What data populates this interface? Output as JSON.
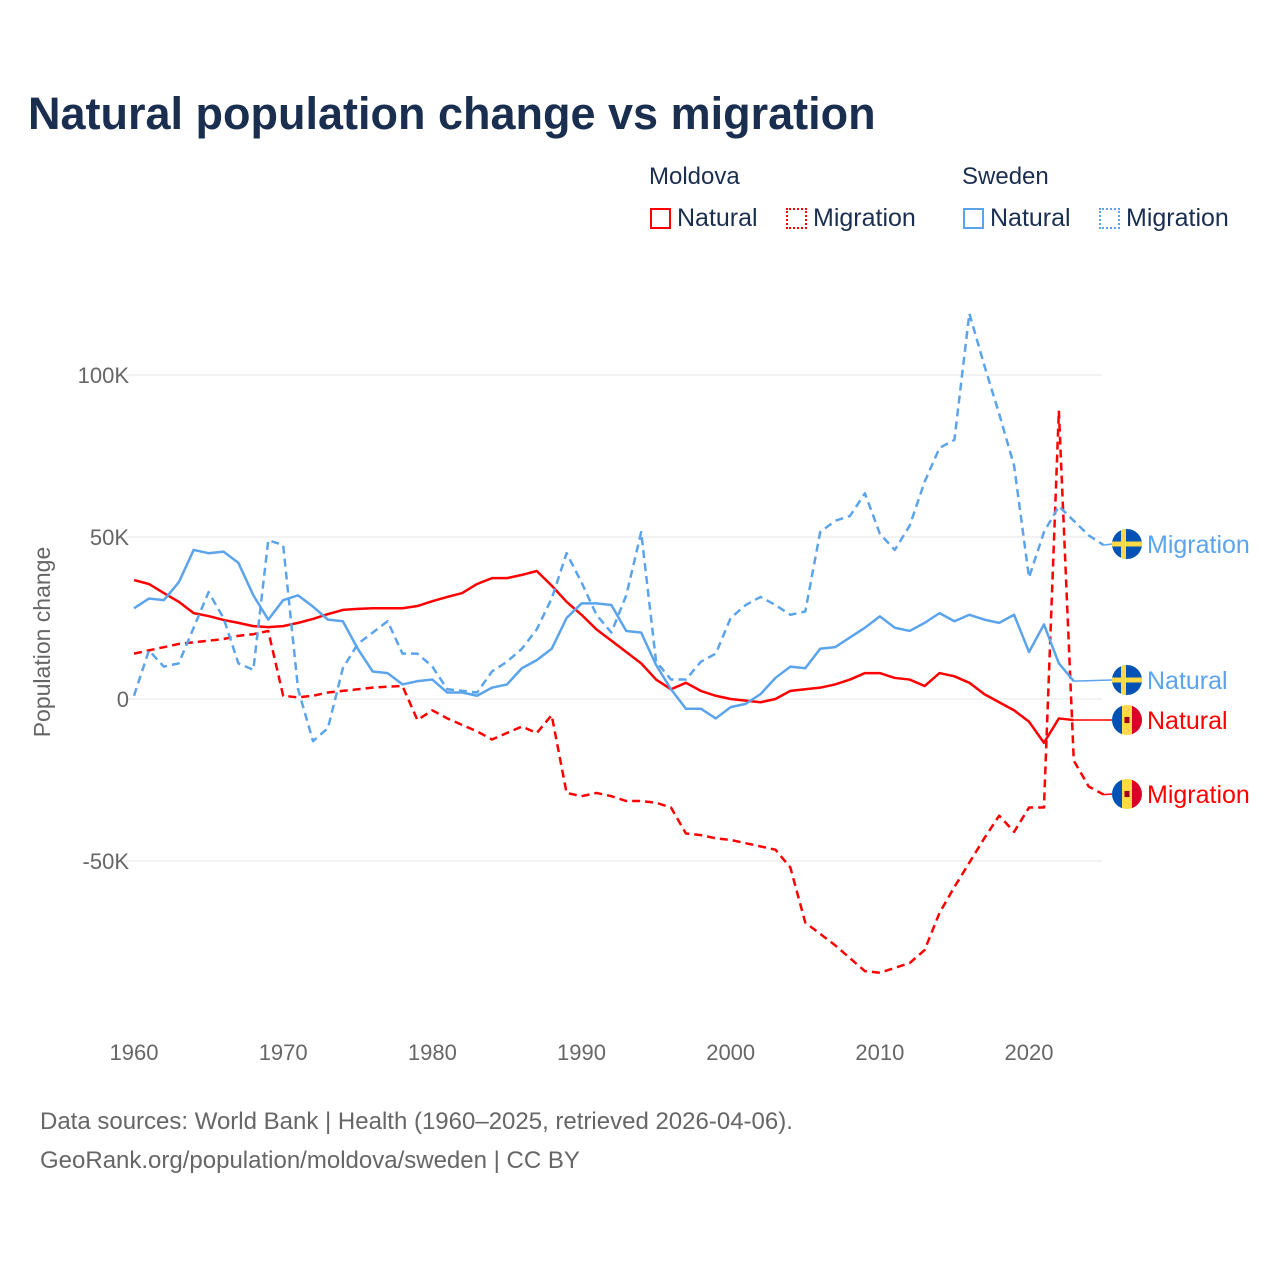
{
  "title": "Natural population change vs migration",
  "legend": {
    "groups": [
      {
        "name": "Moldova",
        "items": [
          {
            "label": "Natural",
            "style": "solid",
            "color": "#ff0000"
          },
          {
            "label": "Migration",
            "style": "dotted",
            "color": "#ff0000"
          }
        ]
      },
      {
        "name": "Sweden",
        "items": [
          {
            "label": "Natural",
            "style": "solid",
            "color": "#5ba4ec"
          },
          {
            "label": "Migration",
            "style": "dotted",
            "color": "#5ba4ec"
          }
        ]
      }
    ]
  },
  "footer": {
    "line1": "Data sources: World Bank | Health (1960–2025, retrieved 2026-04-06).",
    "line2": "GeoRank.org/population/moldova/sweden | CC BY"
  },
  "chart_data": {
    "type": "line",
    "title": "Natural population change vs migration",
    "xlabel": "",
    "ylabel": "Population change",
    "xlim": [
      1960,
      2025
    ],
    "ylim": [
      -95000,
      120000
    ],
    "x_ticks": [
      1960,
      1970,
      1980,
      1990,
      2000,
      2010,
      2020
    ],
    "x_tick_labels": [
      "1960",
      "1970",
      "1980",
      "1990",
      "2000",
      "2010",
      "2020"
    ],
    "y_ticks": [
      -50000,
      0,
      50000,
      100000
    ],
    "y_tick_labels": [
      "-50K",
      "0",
      "50K",
      "100K"
    ],
    "grid": true,
    "series": [
      {
        "name": "Moldova Natural",
        "end_label": "Natural",
        "flag": "moldova-flag",
        "color": "#ff0000",
        "dash": false,
        "start": 1960,
        "values": [
          36700,
          35500,
          32700,
          30000,
          26500,
          25600,
          24400,
          23500,
          22500,
          22200,
          22500,
          23500,
          24700,
          26200,
          27500,
          27800,
          28000,
          28000,
          28000,
          28700,
          30200,
          31500,
          32700,
          35500,
          37300,
          37300,
          38300,
          39500,
          35000,
          30000,
          26000,
          21500,
          18000,
          14500,
          11000,
          6000,
          3000,
          5000,
          2500,
          1000,
          0,
          -500,
          -1000,
          0,
          2500,
          3000,
          3500,
          4500,
          6000,
          8000,
          8000,
          6500,
          6000,
          4000,
          8000,
          7000,
          5000,
          1500,
          -1000,
          -3500,
          -7000,
          -13500,
          -6000,
          -6500
        ]
      },
      {
        "name": "Moldova Migration",
        "end_label": "Migration",
        "flag": "moldova-flag",
        "color": "#ff0000",
        "dash": true,
        "start": 1960,
        "values": [
          14000,
          15000,
          16000,
          17000,
          17500,
          18000,
          18500,
          19500,
          20000,
          21000,
          1000,
          500,
          1000,
          2000,
          2500,
          3000,
          3500,
          3800,
          4000,
          -6500,
          -3500,
          -6000,
          -8000,
          -10000,
          -12500,
          -10500,
          -8500,
          -10500,
          -5000,
          -29000,
          -30000,
          -29000,
          -30000,
          -31500,
          -31500,
          -32000,
          -33500,
          -41500,
          -42000,
          -43000,
          -43500,
          -44500,
          -45500,
          -46500,
          -52000,
          -69000,
          -72500,
          -76000,
          -80000,
          -84000,
          -84500,
          -83000,
          -81500,
          -77500,
          -66000,
          -58000,
          -50500,
          -43000,
          -36000,
          -41000,
          -33500,
          -33500,
          89000,
          -19000,
          -27000,
          -29500
        ]
      },
      {
        "name": "Sweden Natural",
        "end_label": "Natural",
        "flag": "sweden-flag",
        "color": "#5ba4ec",
        "dash": false,
        "start": 1960,
        "values": [
          28000,
          31000,
          30500,
          36000,
          46000,
          45000,
          45500,
          42000,
          32000,
          24500,
          30500,
          32000,
          28500,
          24500,
          24000,
          15500,
          8500,
          8000,
          4500,
          5500,
          6000,
          2000,
          2000,
          1000,
          3500,
          4500,
          9500,
          12000,
          15500,
          25000,
          29500,
          29500,
          29000,
          21000,
          20500,
          10500,
          3000,
          -3000,
          -3000,
          -6000,
          -2500,
          -1500,
          1500,
          6500,
          10000,
          9500,
          15500,
          16000,
          19000,
          22000,
          25500,
          22000,
          21000,
          23500,
          26500,
          24000,
          26000,
          24500,
          23500,
          26000,
          14500,
          23000,
          11000,
          5500
        ]
      },
      {
        "name": "Sweden Migration",
        "end_label": "Migration",
        "flag": "sweden-flag",
        "color": "#5ba4ec",
        "dash": true,
        "start": 1960,
        "values": [
          1000,
          15000,
          10000,
          11000,
          22000,
          33000,
          25000,
          11000,
          9000,
          49000,
          47500,
          3000,
          -13000,
          -9000,
          9500,
          17000,
          20500,
          24000,
          14000,
          14000,
          10000,
          3000,
          2500,
          2000,
          8500,
          11500,
          15500,
          21500,
          31000,
          45000,
          36000,
          26000,
          20500,
          32000,
          51500,
          11500,
          6000,
          6000,
          11500,
          14000,
          25000,
          29000,
          31500,
          29000,
          26000,
          27000,
          51500,
          55000,
          56500,
          63500,
          51000,
          46000,
          53500,
          67000,
          77500,
          80000,
          119000,
          103000,
          88000,
          72000,
          37500,
          51500,
          59500,
          55000,
          50500,
          47500
        ]
      }
    ]
  }
}
